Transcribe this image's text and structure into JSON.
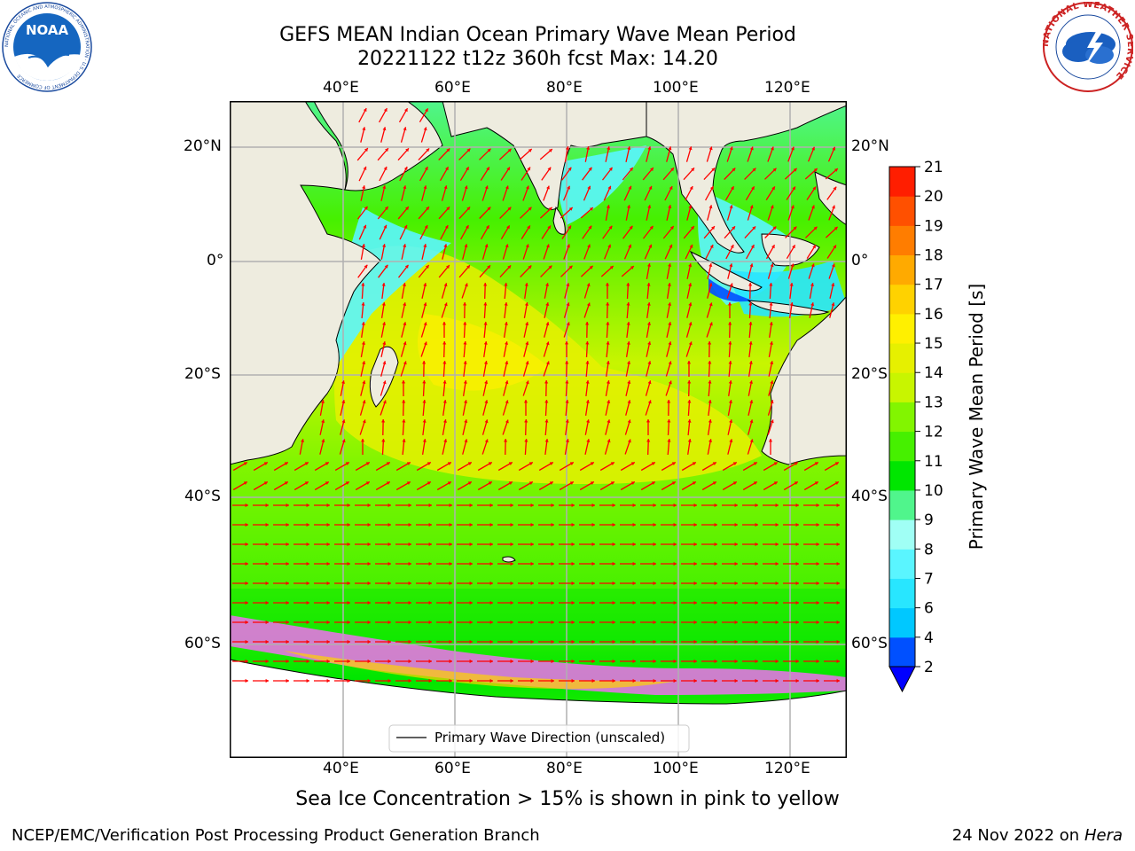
{
  "header": {
    "title_line1": "GEFS MEAN Indian Ocean Primary Wave Mean Period",
    "title_line2": "20221122 t12z 360h fcst   Max: 14.20"
  },
  "map": {
    "lon_labels": [
      "40°E",
      "60°E",
      "80°E",
      "100°E",
      "120°E"
    ],
    "lat_labels_left": [
      "20°N",
      "0°",
      "20°S",
      "40°S",
      "60°S"
    ],
    "lat_labels_right": [
      "20°N",
      "0°",
      "20°S",
      "40°S",
      "60°S"
    ],
    "legend_label": "Primary Wave Direction (unscaled)",
    "colors": {
      "land": "#eeecdf",
      "arrow": "#ff0000",
      "ice": "#ff66ff"
    }
  },
  "colorbar": {
    "label": "Primary Wave Mean Period [s]",
    "ticks": [
      "2",
      "4",
      "6",
      "7",
      "8",
      "9",
      "10",
      "11",
      "12",
      "13",
      "14",
      "15",
      "16",
      "17",
      "18",
      "19",
      "20",
      "21"
    ],
    "colors": [
      "#0050ff",
      "#00c8ff",
      "#28e6ff",
      "#5af5ff",
      "#a0fff5",
      "#50f58c",
      "#00e600",
      "#46f000",
      "#82f500",
      "#c8f500",
      "#e6f000",
      "#fff000",
      "#ffd200",
      "#ffaa00",
      "#ff7d00",
      "#ff5000",
      "#ff1e00"
    ]
  },
  "note": "Sea Ice Concentration > 15% is shown in pink to yellow",
  "footer": {
    "left": "NCEP/EMC/Verification Post Processing Product Generation Branch",
    "date": "24 Nov 2022 on",
    "machine": "Hera"
  },
  "logos": {
    "noaa_text": "NOAA",
    "noaa_ring": "NATIONAL OCEANIC AND ATMOSPHERIC ADMINISTRATION · U.S. DEPARTMENT OF COMMERCE",
    "nws_ring": "NATIONAL WEATHER SERVICE"
  }
}
